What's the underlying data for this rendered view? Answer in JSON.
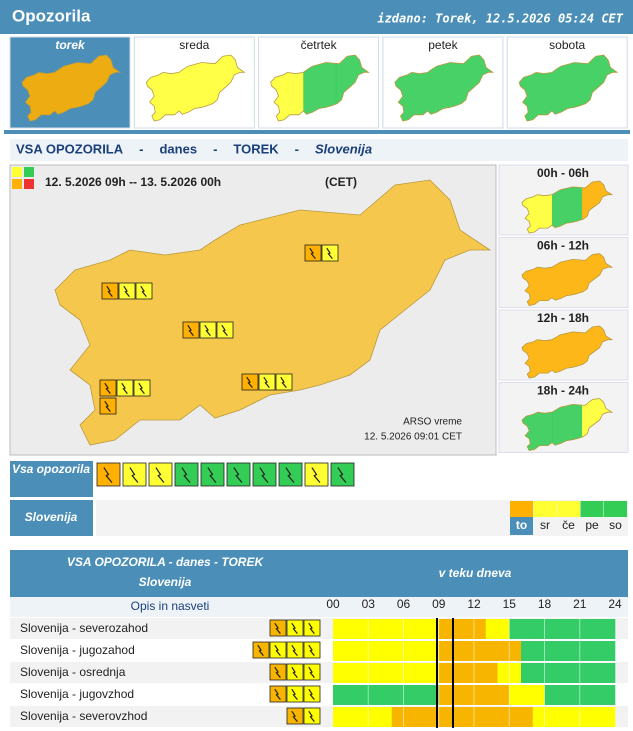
{
  "header": {
    "title": "Opozorila",
    "issued": "izdano: Torek, 12.5.2026 05:24 CET"
  },
  "days": [
    {
      "label": "torek",
      "colors": [
        "#ffb000"
      ]
    },
    {
      "label": "sreda",
      "colors": [
        "#ffff33"
      ]
    },
    {
      "label": "četrtek",
      "colors": [
        "#ffff33",
        "#33cc55",
        "#33cc55"
      ]
    },
    {
      "label": "petek",
      "colors": [
        "#33cc55"
      ]
    },
    {
      "label": "sobota",
      "colors": [
        "#33cc55"
      ]
    }
  ],
  "panel_title": [
    "VSA OPOZORILA",
    "-",
    "danes",
    "-",
    "TOREK",
    "-",
    "Slovenija"
  ],
  "map": {
    "period": "12. 5.2026 09h -- 13. 5.2026 00h",
    "tz": "(CET)",
    "source": "ARSO vreme",
    "timestamp": "12. 5.2026 09:01 CET",
    "colors": [
      "#f7c33c"
    ]
  },
  "periods": [
    {
      "label": "00h - 06h",
      "colors": [
        "#ffff33",
        "#33cc55",
        "#ffb000"
      ]
    },
    {
      "label": "06h - 12h",
      "colors": [
        "#ffb000"
      ]
    },
    {
      "label": "12h - 18h",
      "colors": [
        "#ffb000"
      ]
    },
    {
      "label": "18h - 24h",
      "colors": [
        "#33cc55",
        "#33cc55",
        "#ffff33"
      ]
    }
  ],
  "filter": {
    "all_label": "Vsa opozorila",
    "region_label": "Slovenija",
    "icon_colors": [
      "#ffb000",
      "#ffff33",
      "#ffff33",
      "#33cc55",
      "#33cc55",
      "#33cc55",
      "#33cc55",
      "#33cc55",
      "#ffff33",
      "#33cc55"
    ]
  },
  "legend": {
    "labels": [
      "to",
      "sr",
      "če",
      "pe",
      "so"
    ],
    "colors": [
      "#ffb000",
      "#ffff33",
      "#ffff33",
      "#33cc55",
      "#33cc55"
    ]
  },
  "table": {
    "title": "VSA OPOZORILA - danes - TOREK",
    "subtitle": "Slovenija",
    "timeline_title": "v teku dneva",
    "desc_header": "Opis in nasveti",
    "hours": [
      "00",
      "03",
      "06",
      "09",
      "12",
      "15",
      "18",
      "21",
      "24"
    ],
    "level_colors": {
      "1": "#33cc66",
      "2": "#ffff00",
      "3": "#f7b500"
    },
    "rows": [
      {
        "name": "Slovenija - severozahod",
        "icons": [
          "#f7b500",
          "#ffff00",
          "#ffff00"
        ],
        "levels": [
          2,
          2,
          2,
          2,
          2,
          2,
          2,
          2,
          2,
          3,
          3,
          3,
          3,
          2,
          2,
          1,
          1,
          1,
          1,
          1,
          1,
          1,
          1,
          1
        ]
      },
      {
        "name": "Slovenija - jugozahod",
        "icons": [
          "#f7b500",
          "#ffff00",
          "#ffff00",
          "#ffff00"
        ],
        "levels": [
          2,
          2,
          2,
          2,
          2,
          2,
          2,
          2,
          2,
          3,
          3,
          3,
          3,
          3,
          3,
          3,
          1,
          1,
          1,
          1,
          1,
          1,
          1,
          1
        ]
      },
      {
        "name": "Slovenija - osrednja",
        "icons": [
          "#f7b500",
          "#ffff00",
          "#ffff00"
        ],
        "levels": [
          2,
          2,
          2,
          2,
          2,
          2,
          2,
          2,
          2,
          3,
          3,
          3,
          3,
          3,
          2,
          2,
          1,
          1,
          1,
          1,
          1,
          1,
          1,
          1
        ]
      },
      {
        "name": "Slovenija - jugovzhod",
        "icons": [
          "#f7b500",
          "#ffff00",
          "#ffff00"
        ],
        "levels": [
          1,
          1,
          1,
          1,
          1,
          1,
          1,
          1,
          1,
          3,
          3,
          3,
          3,
          3,
          3,
          2,
          2,
          2,
          1,
          1,
          1,
          1,
          1,
          1
        ]
      },
      {
        "name": "Slovenija - severovzhod",
        "icons": [
          "#f7b500",
          "#ffff00"
        ],
        "levels": [
          2,
          2,
          2,
          2,
          2,
          3,
          3,
          3,
          3,
          3,
          3,
          3,
          3,
          3,
          3,
          3,
          3,
          2,
          2,
          2,
          2,
          2,
          2,
          2
        ]
      }
    ]
  }
}
